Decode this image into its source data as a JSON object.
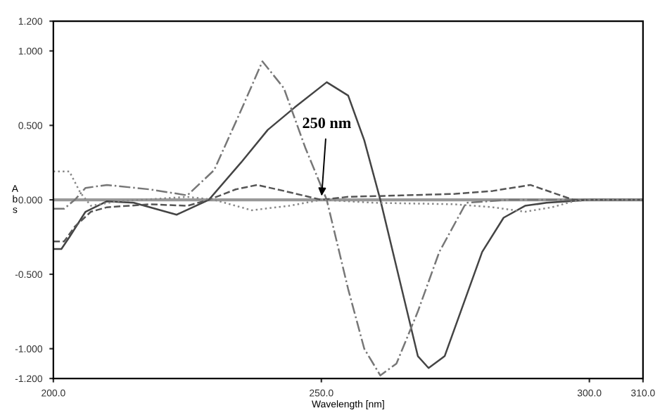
{
  "chart_data": {
    "type": "line",
    "xlabel": "Wavelength [nm]",
    "ylabel": "A\nb\ns",
    "xlim": [
      200,
      310
    ],
    "ylim": [
      -1.2,
      1.2
    ],
    "xticks": [
      {
        "value": 200,
        "label": "200.0"
      },
      {
        "value": 250,
        "label": "250.0"
      },
      {
        "value": 300,
        "label": "300.0"
      },
      {
        "value": 310,
        "label": "310.0"
      }
    ],
    "yticks": [
      {
        "value": -1.2,
        "label": "-1.200"
      },
      {
        "value": -1,
        "label": "-1.000"
      },
      {
        "value": -0.5,
        "label": "-0.500"
      },
      {
        "value": 0,
        "label": "0.000"
      },
      {
        "value": 0.5,
        "label": "0.500"
      },
      {
        "value": 1,
        "label": "1.000"
      },
      {
        "value": 1.2,
        "label": "1.200"
      }
    ],
    "grid": false,
    "legend": false,
    "ref_lines": [
      {
        "axis": "y",
        "value": 0,
        "color": "#999999",
        "line_style": "solid"
      }
    ],
    "annotations": [
      {
        "text": "250 nm",
        "x": 250,
        "y": 0
      }
    ],
    "series": [
      {
        "color": "#444444",
        "line_style": "solid",
        "x": [
          200,
          201.5,
          203,
          206,
          210,
          215,
          223,
          229,
          235,
          240,
          245,
          251,
          255,
          258,
          261,
          265,
          268,
          270,
          273,
          276,
          280,
          284,
          288,
          292,
          296,
          300,
          310
        ],
        "values": [
          -0.33,
          -0.33,
          -0.25,
          -0.08,
          -0.01,
          -0.02,
          -0.1,
          0,
          0.25,
          0.47,
          0.62,
          0.79,
          0.7,
          0.4,
          0.0,
          -0.6,
          -1.05,
          -1.13,
          -1.05,
          -0.75,
          -0.35,
          -0.12,
          -0.04,
          -0.02,
          -0.01,
          0,
          0
        ]
      },
      {
        "color": "#777777",
        "line_style": "dashdot",
        "x": [
          200,
          202,
          204,
          206,
          210,
          218,
          225,
          230,
          235,
          239,
          243,
          247,
          251,
          255,
          258,
          261,
          264,
          268,
          272,
          277,
          285,
          310
        ],
        "values": [
          -0.06,
          -0.06,
          0.0,
          0.08,
          0.1,
          0.07,
          0.03,
          0.2,
          0.6,
          0.93,
          0.75,
          0.35,
          0.0,
          -0.6,
          -1.0,
          -1.18,
          -1.1,
          -0.75,
          -0.35,
          -0.02,
          0,
          0
        ]
      },
      {
        "color": "#555555",
        "line_style": "dashed",
        "x": [
          200,
          202,
          204,
          207,
          210,
          218,
          225,
          229,
          234,
          238,
          243,
          250,
          255,
          265,
          275,
          282,
          289,
          293,
          297,
          310
        ],
        "values": [
          -0.28,
          -0.28,
          -0.18,
          -0.08,
          -0.05,
          -0.03,
          -0.04,
          0,
          0.07,
          0.1,
          0.06,
          0,
          0.02,
          0.03,
          0.04,
          0.06,
          0.1,
          0.05,
          0,
          0
        ]
      },
      {
        "color": "#888888",
        "line_style": "dotted",
        "x": [
          200,
          203,
          205,
          207,
          212,
          225,
          230,
          237,
          244,
          250,
          260,
          275,
          282,
          288,
          293,
          297,
          300,
          310
        ],
        "values": [
          0.19,
          0.19,
          0.05,
          -0.04,
          -0.01,
          0.02,
          0,
          -0.07,
          -0.04,
          0,
          -0.02,
          -0.03,
          -0.05,
          -0.08,
          -0.05,
          -0.01,
          0,
          0
        ]
      }
    ]
  }
}
